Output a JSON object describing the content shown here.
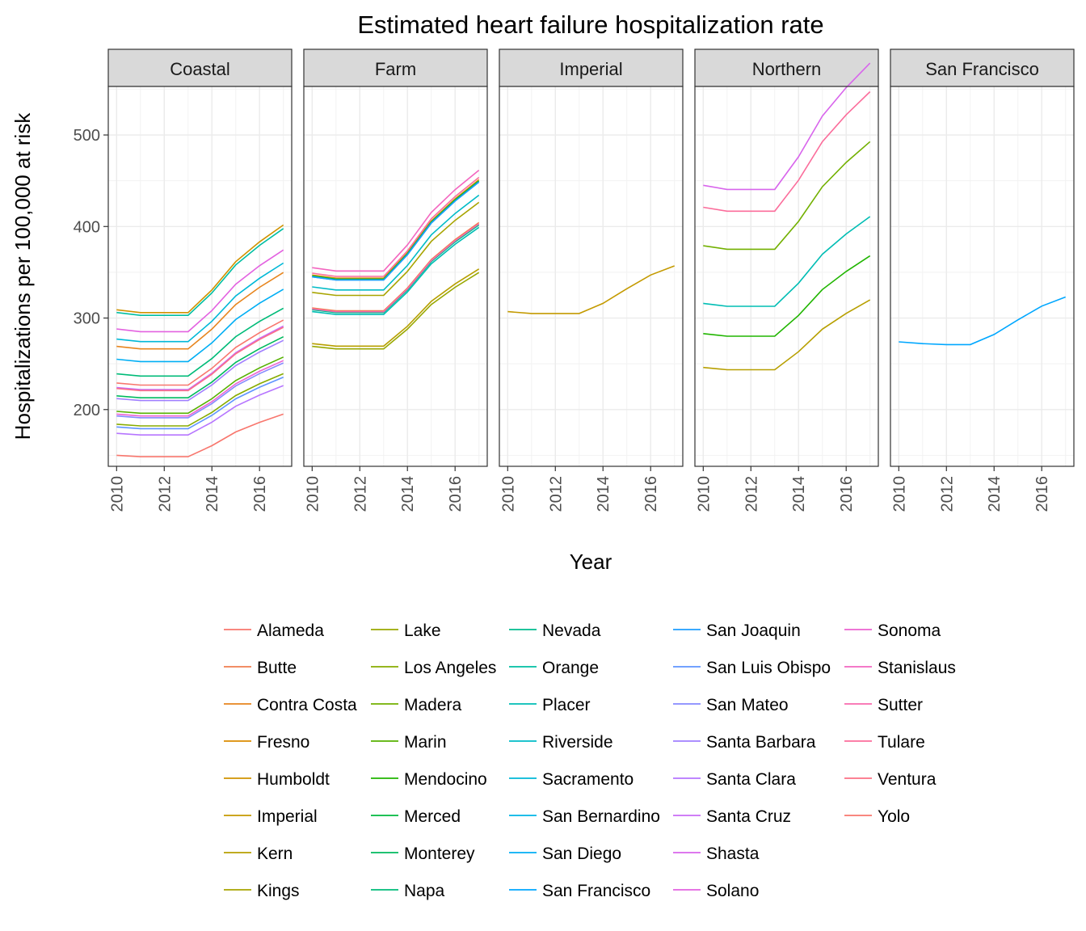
{
  "chart_data": {
    "type": "line",
    "title": "Estimated heart failure hospitalization rate",
    "xlabel": "Year",
    "ylabel": "Hospitalizations per 100,000 at risk",
    "x": [
      2010,
      2011,
      2012,
      2013,
      2014,
      2015,
      2016,
      2017
    ],
    "x_ticks": [
      "2010",
      "2012",
      "2014",
      "2016"
    ],
    "y_ticks": [
      "200",
      "300",
      "400",
      "500"
    ],
    "xlim": [
      2009.65,
      2017.35
    ],
    "ylim": [
      138,
      553
    ],
    "grid": true,
    "legend_position": "bottom",
    "shape": [
      1.0,
      0.99,
      0.99,
      0.99,
      1.07,
      1.17,
      1.24,
      1.3
    ],
    "facets": [
      {
        "label": "Coastal",
        "series": [
          {
            "name": "Alameda",
            "base": 229
          },
          {
            "name": "Contra Costa",
            "base": 269
          },
          {
            "name": "Humboldt",
            "base": 309
          },
          {
            "name": "Los Angeles",
            "base": 184
          },
          {
            "name": "Marin",
            "base": 198
          },
          {
            "name": "Monterey",
            "base": 215
          },
          {
            "name": "Napa",
            "base": 239
          },
          {
            "name": "Orange",
            "base": 306
          },
          {
            "name": "Sacramento",
            "base": 277
          },
          {
            "name": "San Diego",
            "base": 255
          },
          {
            "name": "San Luis Obispo",
            "base": 181
          },
          {
            "name": "San Mateo",
            "base": 193
          },
          {
            "name": "Santa Barbara",
            "base": 212
          },
          {
            "name": "Santa Clara",
            "base": 174
          },
          {
            "name": "Santa Cruz",
            "base": 224
          },
          {
            "name": "Solano",
            "base": 288
          },
          {
            "name": "Sonoma",
            "base": 195
          },
          {
            "name": "Ventura",
            "base": 223
          },
          {
            "name": "Yolo",
            "base": 150
          }
        ]
      },
      {
        "label": "Farm",
        "series": [
          {
            "name": "Butte",
            "base": 311
          },
          {
            "name": "Fresno",
            "base": 347
          },
          {
            "name": "Kern",
            "base": 272
          },
          {
            "name": "Kings",
            "base": 328
          },
          {
            "name": "Lake",
            "base": 269
          },
          {
            "name": "Merced",
            "base": 346
          },
          {
            "name": "Nevada",
            "base": 309
          },
          {
            "name": "Placer",
            "base": 307
          },
          {
            "name": "Riverside",
            "base": 334
          },
          {
            "name": "San Bernardino",
            "base": 345
          },
          {
            "name": "San Joaquin",
            "base": 345
          },
          {
            "name": "Stanislaus",
            "base": 355
          },
          {
            "name": "Sutter",
            "base": 310
          },
          {
            "name": "Tulare",
            "base": 349
          }
        ]
      },
      {
        "label": "Imperial",
        "series": [
          {
            "name": "Imperial",
            "base": 307,
            "values": [
              307,
              305,
              305,
              305,
              316,
              332,
              347,
              357
            ]
          }
        ]
      },
      {
        "label": "Northern",
        "series": [
          {
            "name": "Madera",
            "base": 379
          },
          {
            "name": "Mendocino",
            "base": 283
          },
          {
            "name": "Kern",
            "base": 246
          },
          {
            "name": "Placer",
            "base": 316
          },
          {
            "name": "Shasta",
            "base": 445
          },
          {
            "name": "Tulare",
            "base": 421
          }
        ]
      },
      {
        "label": "San Francisco",
        "series": [
          {
            "name": "San Francisco",
            "base": 274,
            "values": [
              274,
              272,
              271,
              271,
              282,
              298,
              313,
              323
            ]
          }
        ]
      }
    ],
    "legend": [
      {
        "name": "Alameda",
        "color": "#F8766D"
      },
      {
        "name": "Butte",
        "color": "#F07E4F"
      },
      {
        "name": "Contra Costa",
        "color": "#E7851E"
      },
      {
        "name": "Fresno",
        "color": "#DC8C00"
      },
      {
        "name": "Humboldt",
        "color": "#D09200"
      },
      {
        "name": "Imperial",
        "color": "#C49A00"
      },
      {
        "name": "Kern",
        "color": "#B79F00"
      },
      {
        "name": "Kings",
        "color": "#A8A400"
      },
      {
        "name": "Lake",
        "color": "#99A800"
      },
      {
        "name": "Los Angeles",
        "color": "#87AC00"
      },
      {
        "name": "Madera",
        "color": "#72B000"
      },
      {
        "name": "Marin",
        "color": "#56B100"
      },
      {
        "name": "Mendocino",
        "color": "#20B500"
      },
      {
        "name": "Merced",
        "color": "#00B83E"
      },
      {
        "name": "Monterey",
        "color": "#00BA5E"
      },
      {
        "name": "Napa",
        "color": "#00BB78"
      },
      {
        "name": "Nevada",
        "color": "#00BC8E"
      },
      {
        "name": "Orange",
        "color": "#00BEA2"
      },
      {
        "name": "Placer",
        "color": "#00BDB4"
      },
      {
        "name": "Riverside",
        "color": "#00BBC7"
      },
      {
        "name": "Sacramento",
        "color": "#00B8D7"
      },
      {
        "name": "San Bernardino",
        "color": "#00B4E6"
      },
      {
        "name": "San Diego",
        "color": "#00AEF4"
      },
      {
        "name": "San Francisco",
        "color": "#00A7FF"
      },
      {
        "name": "San Joaquin",
        "color": "#1E9EFF"
      },
      {
        "name": "San Luis Obispo",
        "color": "#5F94FF"
      },
      {
        "name": "San Mateo",
        "color": "#868AFF"
      },
      {
        "name": "Santa Barbara",
        "color": "#A07FFF"
      },
      {
        "name": "Santa Clara",
        "color": "#B675FF"
      },
      {
        "name": "Santa Cruz",
        "color": "#C96CF6"
      },
      {
        "name": "Shasta",
        "color": "#D865EC"
      },
      {
        "name": "Solano",
        "color": "#E362E0"
      },
      {
        "name": "Sonoma",
        "color": "#EC63D1"
      },
      {
        "name": "Stanislaus",
        "color": "#F366C0"
      },
      {
        "name": "Sutter",
        "color": "#F869AE"
      },
      {
        "name": "Tulare",
        "color": "#FB6D9B"
      },
      {
        "name": "Ventura",
        "color": "#FC7085"
      },
      {
        "name": "Yolo",
        "color": "#F8766D"
      }
    ]
  }
}
